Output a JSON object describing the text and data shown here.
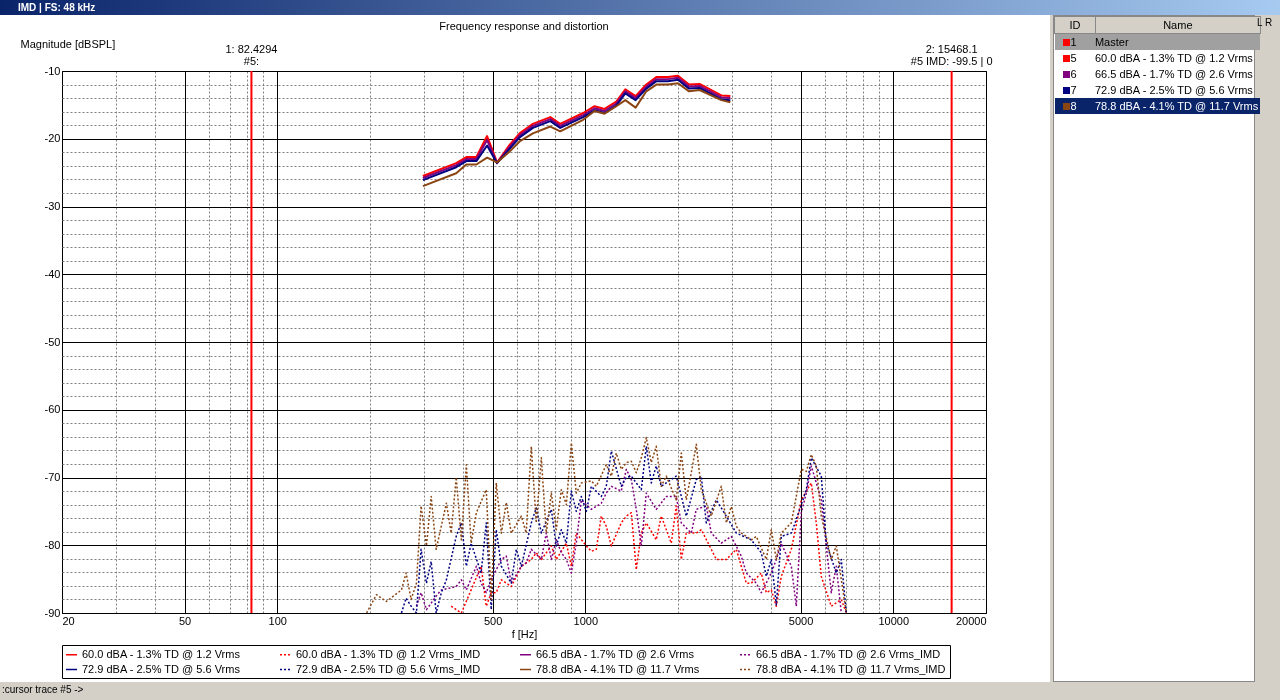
{
  "chart_data": [
    {
      "type": "line",
      "title": "Frequency response and distortion",
      "xlabel": "f [Hz]",
      "ylabel": "Magnitude [dBSPL]",
      "log": "x",
      "grid": true,
      "legend": "bottom",
      "xlim": [
        20,
        20000
      ],
      "ylim": [
        -90,
        -10
      ],
      "xticks": [
        20,
        {
          "value": 30,
          "label": null
        },
        {
          "value": 40,
          "label": null
        },
        50,
        {
          "value": 60,
          "label": null
        },
        {
          "value": 70,
          "label": null
        },
        {
          "value": 80,
          "label": null
        },
        {
          "value": 90,
          "label": null
        },
        100,
        {
          "value": 200,
          "label": null
        },
        {
          "value": 300,
          "label": null
        },
        {
          "value": 400,
          "label": null
        },
        500,
        {
          "value": 600,
          "label": null
        },
        {
          "value": 700,
          "label": null
        },
        {
          "value": 800,
          "label": null
        },
        {
          "value": 900,
          "label": null
        },
        1000,
        {
          "value": 2000,
          "label": null
        },
        {
          "value": 3000,
          "label": null
        },
        {
          "value": 4000,
          "label": null
        },
        5000,
        {
          "value": 6000,
          "label": null
        },
        {
          "value": 7000,
          "label": null
        },
        {
          "value": 8000,
          "label": null
        },
        {
          "value": 9000,
          "label": null
        },
        10000,
        20000
      ],
      "yticks": [
        -10,
        {
          "value": -12,
          "label": null
        },
        {
          "value": -14,
          "label": null
        },
        {
          "value": -16,
          "label": null
        },
        {
          "value": -18,
          "label": null
        },
        -20,
        {
          "value": -22,
          "label": null
        },
        {
          "value": -24,
          "label": null
        },
        {
          "value": -26,
          "label": null
        },
        {
          "value": -28,
          "label": null
        },
        -30,
        {
          "value": -32,
          "label": null
        },
        {
          "value": -34,
          "label": null
        },
        {
          "value": -36,
          "label": null
        },
        {
          "value": -38,
          "label": null
        },
        -40,
        {
          "value": -42,
          "label": null
        },
        {
          "value": -44,
          "label": null
        },
        {
          "value": -46,
          "label": null
        },
        {
          "value": -48,
          "label": null
        },
        -50,
        {
          "value": -52,
          "label": null
        },
        {
          "value": -54,
          "label": null
        },
        {
          "value": -56,
          "label": null
        },
        {
          "value": -58,
          "label": null
        },
        -60,
        {
          "value": -62,
          "label": null
        },
        {
          "value": -64,
          "label": null
        },
        {
          "value": -66,
          "label": null
        },
        {
          "value": -68,
          "label": null
        },
        -70,
        {
          "value": -72,
          "label": null
        },
        {
          "value": -74,
          "label": null
        },
        {
          "value": -76,
          "label": null
        },
        {
          "value": -78,
          "label": null
        },
        -80,
        {
          "value": -82,
          "label": null
        },
        {
          "value": -84,
          "label": null
        },
        {
          "value": -86,
          "label": null
        },
        {
          "value": -88,
          "label": null
        },
        -90
      ],
      "x": [
        297,
        381,
        411,
        443,
        480,
        517,
        568,
        612,
        676,
        770,
        829,
        984,
        1072,
        1155,
        1261,
        1349,
        1457,
        1578,
        1701,
        1855,
        2000,
        2172,
        2350,
        2766,
        2958
      ],
      "series": [
        {
          "name": "60.0 dBA - 1.3% TD @ 1.2 Vrms",
          "color": "#ff0000",
          "line_style": "solid",
          "values": [
            -25.5,
            -23.6,
            -22.7,
            -22.7,
            -19.6,
            -23.5,
            -20.9,
            -19.2,
            -17.8,
            -16.8,
            -17.8,
            -16.2,
            -15.2,
            -15.6,
            -14.5,
            -12.7,
            -13.7,
            -12.0,
            -10.9,
            -10.9,
            -10.7,
            -12.0,
            -11.9,
            -13.6,
            -13.7
          ]
        },
        {
          "name": "60.0 dBA - 1.3% TD @ 1.2 Vrms_IMD",
          "color": "#ff0000",
          "line_style": "dotted",
          "x": [
            367,
            396,
            459,
            477,
            495,
            514,
            534,
            575,
            620,
            668,
            693,
            720,
            776,
            805,
            868,
            901,
            935,
            1008,
            1046,
            1086,
            1127,
            1170,
            1215,
            1309,
            1359,
            1411,
            1464,
            1520,
            1578,
            1700,
            1765,
            1902,
            1974,
            2050,
            2128,
            2293,
            2380,
            2565,
            2663,
            2870,
            3093,
            3333,
            3459,
            3728,
            3870,
            4018,
            4171,
            4329,
            4666,
            5028,
            5418,
            5623,
            5838,
            6291,
            6779,
            7038
          ],
          "values": [
            -89,
            -90,
            -83.1,
            -89,
            -87,
            -87,
            -85.1,
            -86.1,
            -83.1,
            -82.1,
            -81.1,
            -82.1,
            -80.1,
            -82.1,
            -79.7,
            -83.1,
            -78.2,
            -80.1,
            -80.9,
            -80.6,
            -75.7,
            -77.2,
            -80.1,
            -76.7,
            -75.7,
            -75.2,
            -83.6,
            -78.2,
            -76.7,
            -79.2,
            -75.7,
            -79.7,
            -74.2,
            -82.1,
            -78.2,
            -78.2,
            -77.7,
            -80.6,
            -82.1,
            -82.1,
            -80.6,
            -85.6,
            -85.6,
            -84.1,
            -87.0,
            -86.6,
            -89.0,
            -84.6,
            -80.6,
            -73.3,
            -70.8,
            -76.7,
            -84.6,
            -89.0,
            -88.0,
            -90
          ]
        },
        {
          "name": "66.5 dBA - 1.7% TD @ 2.6 Vrms",
          "color": "#800080",
          "line_style": "solid",
          "values": [
            -25.8,
            -23.9,
            -23.0,
            -23.0,
            -20.2,
            -23.6,
            -21.2,
            -19.5,
            -18.1,
            -17.1,
            -18.1,
            -16.5,
            -15.5,
            -15.9,
            -14.8,
            -13.0,
            -14.0,
            -12.3,
            -11.2,
            -11.2,
            -11.0,
            -12.3,
            -12.2,
            -13.9,
            -14.0
          ]
        },
        {
          "name": "66.5 dBA - 1.7% TD @ 2.6 Vrms_IMD",
          "color": "#800080",
          "line_style": "dotted",
          "x": [
            283,
            293,
            305,
            328,
            341,
            381,
            396,
            411,
            443,
            459,
            477,
            495,
            534,
            554,
            575,
            620,
            643,
            668,
            720,
            747,
            776,
            805,
            836,
            868,
            901,
            935,
            971,
            1046,
            1127,
            1170,
            1215,
            1309,
            1359,
            1411,
            1464,
            1520,
            1578,
            1700,
            1832,
            1974,
            2050,
            2209,
            2293,
            2471,
            2565,
            2764,
            2979,
            3210,
            3333,
            3591,
            3728,
            4018,
            4171,
            4329,
            4666,
            4843,
            5028,
            5219,
            5418,
            5838,
            6060,
            6291,
            6531,
            6779
          ],
          "values": [
            -89,
            -87,
            -89.5,
            -87.5,
            -86.6,
            -86.1,
            -85.1,
            -86.6,
            -83.1,
            -85.6,
            -87.0,
            -85.1,
            -82.1,
            -81.6,
            -85.6,
            -83.1,
            -82.6,
            -80.6,
            -82.1,
            -78.2,
            -82.1,
            -79.2,
            -81.1,
            -82.1,
            -84.1,
            -79.7,
            -73.3,
            -74.7,
            -73.8,
            -72.3,
            -71.3,
            -72.0,
            -68.8,
            -70.3,
            -74.7,
            -80.1,
            -72.3,
            -74.7,
            -72.8,
            -72.8,
            -76.7,
            -78.2,
            -74.7,
            -74.2,
            -78.2,
            -79.7,
            -78.7,
            -81.6,
            -84.1,
            -85.6,
            -87.0,
            -84.1,
            -82.1,
            -79.7,
            -83.1,
            -89.0,
            -75.2,
            -72.3,
            -68.3,
            -73.3,
            -80.1,
            -87.0,
            -83.1,
            -90
          ]
        },
        {
          "name": "72.9 dBA - 2.5% TD @ 5.6 Vrms",
          "color": "#000080",
          "line_style": "solid",
          "values": [
            -26.1,
            -24.2,
            -23.3,
            -23.3,
            -21.0,
            -23.6,
            -21.5,
            -19.8,
            -18.4,
            -17.4,
            -18.4,
            -16.8,
            -15.8,
            -16.2,
            -15.1,
            -13.3,
            -14.3,
            -12.6,
            -11.5,
            -11.5,
            -11.3,
            -12.6,
            -12.5,
            -14.2,
            -14.3
          ]
        },
        {
          "name": "72.9 dBA - 2.5% TD @ 5.6 Vrms_IMD",
          "color": "#000080",
          "line_style": "dotted",
          "x": [
            253,
            262,
            272,
            283,
            293,
            305,
            316,
            328,
            341,
            354,
            381,
            396,
            411,
            426,
            459,
            477,
            495,
            514,
            534,
            575,
            597,
            620,
            668,
            693,
            720,
            776,
            805,
            836,
            868,
            901,
            935,
            971,
            1008,
            1046,
            1127,
            1170,
            1215,
            1309,
            1359,
            1411,
            1520,
            1578,
            1638,
            1700,
            1765,
            1974,
            2128,
            2293,
            2380,
            2471,
            2663,
            2870,
            3093,
            3459,
            3728,
            3870,
            4018,
            4171,
            4329,
            4666,
            4843,
            5219,
            5418,
            5838,
            6060,
            6531,
            6779,
            7038
          ],
          "values": [
            -90,
            -87.8,
            -89,
            -90,
            -80.6,
            -85.6,
            -82.4,
            -90,
            -87,
            -85.1,
            -78.7,
            -76.7,
            -83.1,
            -79.7,
            -84.1,
            -76.7,
            -89.5,
            -77.7,
            -83.1,
            -85.6,
            -80.6,
            -83.1,
            -76.7,
            -74.5,
            -78.2,
            -74.7,
            -80.1,
            -77.7,
            -79.7,
            -72.0,
            -75.0,
            -72.8,
            -75.0,
            -71.3,
            -72.8,
            -71.3,
            -66.1,
            -71.3,
            -70.0,
            -69.8,
            -71.8,
            -65.4,
            -70.8,
            -68.3,
            -71.3,
            -69.8,
            -75.7,
            -70.3,
            -69.8,
            -76.7,
            -73.3,
            -75.7,
            -78.2,
            -79.2,
            -81.1,
            -84.6,
            -82.1,
            -88.8,
            -78.7,
            -78.2,
            -76.2,
            -71.8,
            -67.1,
            -69.8,
            -79.7,
            -84.1,
            -82.1,
            -90
          ]
        },
        {
          "name": "78.8 dBA - 4.1% TD @ 11.7 Vrms",
          "color": "#8b4513",
          "line_style": "solid",
          "values": [
            -27.0,
            -25.1,
            -23.8,
            -23.8,
            -22.8,
            -23.5,
            -21.9,
            -20.4,
            -19.2,
            -18.2,
            -18.9,
            -17.2,
            -15.9,
            -16.3,
            -15.2,
            -14.3,
            -15.4,
            -13.0,
            -12.0,
            -12.0,
            -11.8,
            -13.0,
            -12.8,
            -14.3,
            -14.6
          ]
        },
        {
          "name": "78.8 dBA - 4.1% TD @ 11.7 Vrms_IMD",
          "color": "#8b4513",
          "line_style": "dotted",
          "x": [
            195,
            210,
            226,
            253,
            262,
            272,
            283,
            293,
            305,
            316,
            328,
            354,
            367,
            381,
            396,
            411,
            426,
            443,
            477,
            495,
            514,
            534,
            554,
            575,
            620,
            643,
            668,
            693,
            720,
            747,
            776,
            805,
            836,
            868,
            901,
            935,
            971,
            1046,
            1086,
            1170,
            1215,
            1261,
            1309,
            1359,
            1411,
            1464,
            1520,
            1578,
            1638,
            1700,
            1765,
            1832,
            1974,
            2050,
            2128,
            2209,
            2293,
            2380,
            2565,
            2764,
            2870,
            2979,
            3093,
            3210,
            3459,
            3591,
            3870,
            4018,
            4171,
            4329,
            4666,
            5028,
            5219,
            5418,
            5623,
            5838,
            6291,
            6531,
            7038
          ],
          "values": [
            -90,
            -87.3,
            -88.3,
            -86.6,
            -84.1,
            -88,
            -85.6,
            -74.2,
            -80.1,
            -72.8,
            -80.6,
            -73.8,
            -78.2,
            -70.0,
            -79.2,
            -68.1,
            -79.7,
            -75.2,
            -71.8,
            -88.0,
            -70.8,
            -78.2,
            -73.7,
            -78.2,
            -75.7,
            -78.2,
            -65.4,
            -76.7,
            -67.1,
            -78.2,
            -72.3,
            -77.7,
            -71.8,
            -74.0,
            -64.9,
            -72.3,
            -70.8,
            -70.5,
            -71.3,
            -68.1,
            -69.8,
            -66.4,
            -68.8,
            -67.8,
            -67.6,
            -69.3,
            -67.1,
            -64.1,
            -67.8,
            -65.4,
            -71.3,
            -69.8,
            -73.3,
            -66.4,
            -73.3,
            -69.3,
            -65.1,
            -71.8,
            -75.7,
            -71.3,
            -76.7,
            -74.3,
            -77.2,
            -78.2,
            -79.2,
            -78.7,
            -82.1,
            -77.7,
            -82.1,
            -78.2,
            -76.7,
            -68.8,
            -69.1,
            -66.6,
            -68.3,
            -75.7,
            -82.1,
            -80.1,
            -90
          ]
        }
      ],
      "ref_lines": [
        {
          "axis": "x",
          "value": 82.4294,
          "label": "1:  82.4294",
          "color": "#ff0000"
        },
        {
          "axis": "x",
          "value": 15468.1,
          "label": "2:  15468.1",
          "color": "#ff0000"
        }
      ],
      "annotations": [
        "IMD  | FS: 48 kHz",
        {
          "text": "#5:",
          "x": 82.4294,
          "y": -10
        },
        {
          "text": "#5 IMD: -99.5  |  0",
          "x": 15468.1,
          "y": -10
        },
        ":cursor trace #5 ->"
      ]
    },
    {
      "type": "other",
      "annotations": [
        "ID",
        "Name",
        "L",
        "R",
        "1",
        "5",
        "6",
        "7",
        "8"
      ],
      "categories": [
        "Master",
        "60.0 dBA - 1.3% TD @ 1.2 Vrms",
        "66.5 dBA - 1.7% TD @ 2.6 Vrms",
        "72.9 dBA - 2.5% TD @ 5.6 Vrms",
        "78.8 dBA - 4.1% TD @ 11.7 Vrms"
      ],
      "colors": [
        "#ff0000",
        "#ff0000",
        "#800080",
        "#000080",
        "#8b4513"
      ]
    }
  ]
}
